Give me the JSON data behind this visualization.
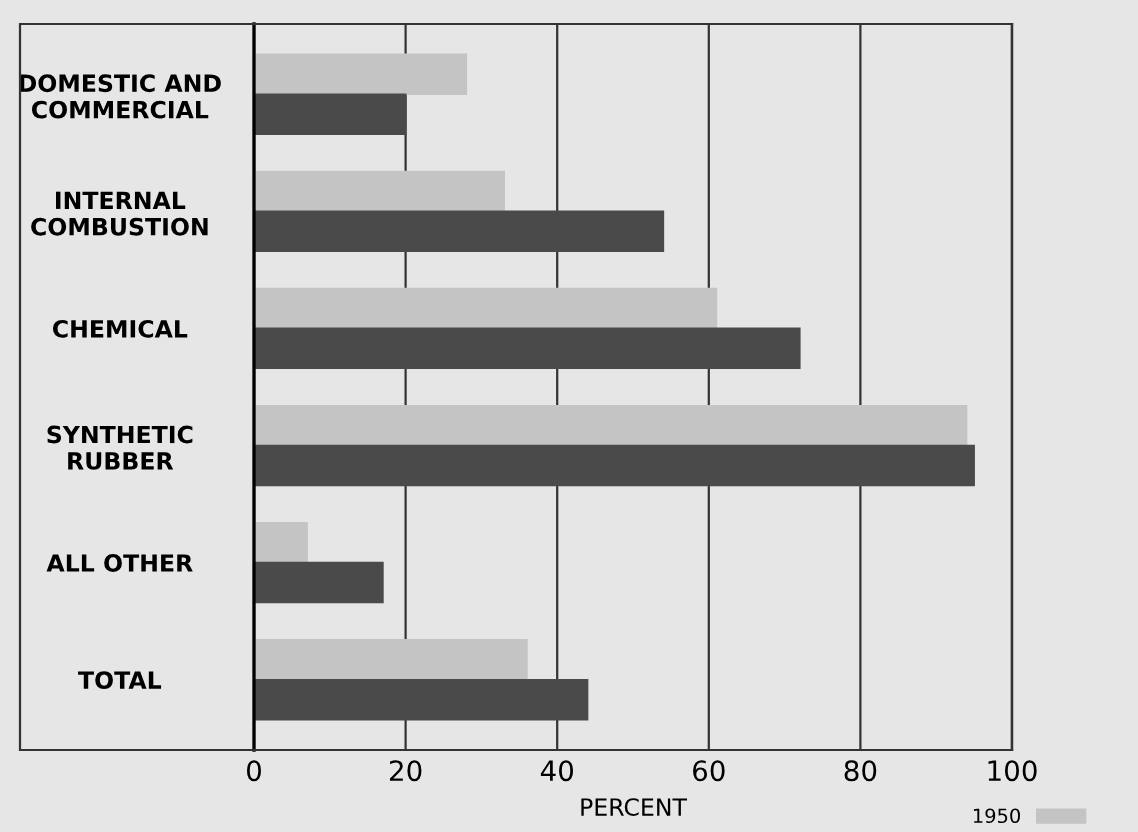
{
  "chart_data": {
    "type": "bar",
    "orientation": "horizontal",
    "xlabel": "PERCENT",
    "categories": [
      "DOMESTIC AND\nCOMMERCIAL",
      "INTERNAL\nCOMBUSTION",
      "CHEMICAL",
      "SYNTHETIC\nRUBBER",
      "ALL OTHER",
      "TOTAL"
    ],
    "series": [
      {
        "name": "1950",
        "color": "#c4c4c4",
        "values": [
          28,
          33,
          61,
          94,
          7,
          36
        ]
      },
      {
        "color": "#4a4a4a",
        "values": [
          20,
          54,
          72,
          95,
          17,
          44
        ]
      }
    ],
    "xlim": [
      0,
      100
    ],
    "xticks": [
      0,
      20,
      40,
      60,
      80,
      100
    ],
    "grid": "x",
    "legend": "bottom right"
  }
}
